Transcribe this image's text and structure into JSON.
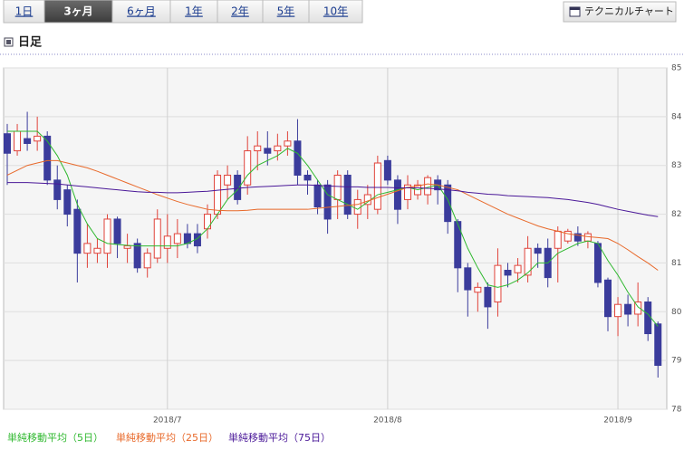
{
  "tabs": [
    "1日",
    "3ヶ月",
    "6ヶ月",
    "1年",
    "2年",
    "5年",
    "10年"
  ],
  "selected_tab": 1,
  "technical_button": "テクニカルチャート",
  "chart_data": {
    "type": "candlestick",
    "title": "日足",
    "categories": [
      null,
      null,
      null,
      null,
      null,
      null,
      null,
      null,
      null,
      null,
      null,
      null,
      null,
      null,
      null,
      null,
      "2018/7",
      null,
      null,
      null,
      null,
      null,
      null,
      null,
      null,
      null,
      null,
      null,
      null,
      null,
      null,
      null,
      null,
      null,
      null,
      null,
      null,
      null,
      "2018/8",
      null,
      null,
      null,
      null,
      null,
      null,
      null,
      null,
      null,
      null,
      null,
      null,
      null,
      null,
      null,
      null,
      null,
      null,
      null,
      null,
      null,
      null,
      "2018/9",
      null,
      null,
      null,
      null
    ],
    "open": [
      83.65,
      83.3,
      83.55,
      83.5,
      83.6,
      82.7,
      82.5,
      82.1,
      81.2,
      81.2,
      81.2,
      81.9,
      81.3,
      81.4,
      80.9,
      81.1,
      81.3,
      81.4,
      81.6,
      81.6,
      81.7,
      82.0,
      82.6,
      82.8,
      82.6,
      83.3,
      83.35,
      83.3,
      83.4,
      83.5,
      82.8,
      82.6,
      82.6,
      82.3,
      82.8,
      82.0,
      82.2,
      82.1,
      83.1,
      82.7,
      82.3,
      82.4,
      82.4,
      82.7,
      82.6,
      81.85,
      80.9,
      80.4,
      80.5,
      80.2,
      80.85,
      80.8,
      80.75,
      81.3,
      81.3,
      81.3,
      81.45,
      81.6,
      81.45,
      81.4,
      80.65,
      79.9,
      80.15,
      79.95,
      80.2,
      79.75
    ],
    "high": [
      83.85,
      83.85,
      84.1,
      84.0,
      83.7,
      83.0,
      82.6,
      82.3,
      81.8,
      81.5,
      82.0,
      81.95,
      81.6,
      81.5,
      81.3,
      82.1,
      82.0,
      81.9,
      81.8,
      81.8,
      82.2,
      82.9,
      83.0,
      82.9,
      83.6,
      83.7,
      83.7,
      83.65,
      83.7,
      83.95,
      82.9,
      82.7,
      82.7,
      82.9,
      82.9,
      82.5,
      82.6,
      83.2,
      83.2,
      82.8,
      82.8,
      82.7,
      82.8,
      82.8,
      82.7,
      81.9,
      81.0,
      80.6,
      80.6,
      81.3,
      81.0,
      81.1,
      81.55,
      81.4,
      81.5,
      81.75,
      81.7,
      81.75,
      81.65,
      81.45,
      80.7,
      80.3,
      80.35,
      80.6,
      80.3,
      79.8
    ],
    "low": [
      82.6,
      83.2,
      83.3,
      83.3,
      82.6,
      82.1,
      81.75,
      80.6,
      80.9,
      81.0,
      80.9,
      81.1,
      81.0,
      80.8,
      80.7,
      81.0,
      81.0,
      81.1,
      81.3,
      81.2,
      81.5,
      81.9,
      82.3,
      82.2,
      82.4,
      82.9,
      83.0,
      83.1,
      83.2,
      82.6,
      82.4,
      82.0,
      81.6,
      81.9,
      81.9,
      81.7,
      81.9,
      82.0,
      82.6,
      81.8,
      82.1,
      82.3,
      82.2,
      82.2,
      81.6,
      80.4,
      79.9,
      80.0,
      79.65,
      79.9,
      80.5,
      80.6,
      80.6,
      80.9,
      80.5,
      80.6,
      81.4,
      81.35,
      81.3,
      80.5,
      79.6,
      79.5,
      79.7,
      79.7,
      79.4,
      78.65
    ],
    "close": [
      83.25,
      83.7,
      83.45,
      83.6,
      82.7,
      82.3,
      82.0,
      81.2,
      81.4,
      81.3,
      81.9,
      81.4,
      81.35,
      80.9,
      81.2,
      81.9,
      81.55,
      81.6,
      81.4,
      81.35,
      82.0,
      82.8,
      82.8,
      82.3,
      83.3,
      83.4,
      83.25,
      83.4,
      83.5,
      82.8,
      82.7,
      82.15,
      81.9,
      82.8,
      82.0,
      82.3,
      82.4,
      83.05,
      82.7,
      82.1,
      82.6,
      82.6,
      82.75,
      82.5,
      81.85,
      80.9,
      80.45,
      80.5,
      80.1,
      80.95,
      80.75,
      80.95,
      81.3,
      81.2,
      80.7,
      81.65,
      81.65,
      81.45,
      81.6,
      80.6,
      79.9,
      80.15,
      79.95,
      80.2,
      79.55,
      78.9
    ],
    "up_color": "#e0433a",
    "down_color": "#3b3c9c",
    "series": [
      {
        "name": "単純移動平均（5日）",
        "color": "#2fb82f",
        "values": [
          83.7,
          83.7,
          83.7,
          83.7,
          83.5,
          83.2,
          82.8,
          82.2,
          81.8,
          81.5,
          81.4,
          81.38,
          81.36,
          81.35,
          81.35,
          81.35,
          81.35,
          81.35,
          81.4,
          81.5,
          81.7,
          82.0,
          82.3,
          82.5,
          82.8,
          83.0,
          83.1,
          83.2,
          83.35,
          83.25,
          83.0,
          82.7,
          82.4,
          82.3,
          82.2,
          82.1,
          82.25,
          82.4,
          82.45,
          82.5,
          82.55,
          82.5,
          82.55,
          82.6,
          82.3,
          81.8,
          81.3,
          80.9,
          80.55,
          80.5,
          80.55,
          80.65,
          80.8,
          81.0,
          81.0,
          81.2,
          81.3,
          81.4,
          81.45,
          81.4,
          81.05,
          80.75,
          80.4,
          80.1,
          79.95,
          79.7
        ]
      },
      {
        "name": "単純移動平均（25日）",
        "color": "#e8692a",
        "values": [
          82.8,
          82.9,
          83.0,
          83.05,
          83.1,
          83.1,
          83.05,
          83.0,
          82.95,
          82.88,
          82.8,
          82.72,
          82.64,
          82.56,
          82.48,
          82.4,
          82.33,
          82.26,
          82.2,
          82.15,
          82.1,
          82.08,
          82.07,
          82.07,
          82.08,
          82.1,
          82.1,
          82.1,
          82.1,
          82.1,
          82.1,
          82.12,
          82.14,
          82.16,
          82.18,
          82.2,
          82.27,
          82.34,
          82.41,
          82.48,
          82.55,
          82.58,
          82.62,
          82.6,
          82.55,
          82.5,
          82.4,
          82.3,
          82.2,
          82.1,
          82.0,
          81.92,
          81.84,
          81.76,
          81.7,
          81.65,
          81.6,
          81.57,
          81.54,
          81.52,
          81.5,
          81.4,
          81.27,
          81.13,
          81.0,
          80.85
        ]
      },
      {
        "name": "単純移動平均（75日）",
        "color": "#4a1898",
        "values": [
          82.65,
          82.65,
          82.65,
          82.64,
          82.63,
          82.62,
          82.6,
          82.58,
          82.56,
          82.54,
          82.52,
          82.5,
          82.48,
          82.46,
          82.45,
          82.45,
          82.44,
          82.44,
          82.45,
          82.46,
          82.47,
          82.49,
          82.51,
          82.53,
          82.55,
          82.56,
          82.57,
          82.58,
          82.59,
          82.6,
          82.6,
          82.59,
          82.58,
          82.57,
          82.56,
          82.56,
          82.55,
          82.55,
          82.55,
          82.54,
          82.54,
          82.54,
          82.53,
          82.52,
          82.5,
          82.48,
          82.45,
          82.43,
          82.41,
          82.4,
          82.38,
          82.37,
          82.36,
          82.35,
          82.34,
          82.32,
          82.3,
          82.27,
          82.24,
          82.2,
          82.15,
          82.1,
          82.06,
          82.02,
          81.98,
          81.95
        ]
      }
    ],
    "ylim": [
      78,
      85
    ],
    "yticks": [
      78,
      79,
      80,
      81,
      82,
      83,
      84,
      85
    ],
    "grid": true
  }
}
